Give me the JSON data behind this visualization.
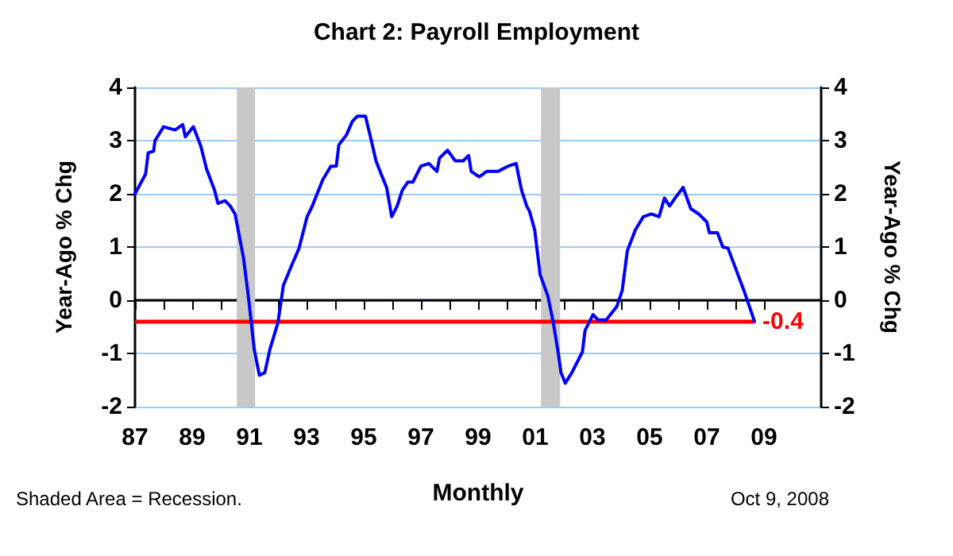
{
  "chart_data": {
    "type": "line",
    "title": "Chart 2: Payroll Employment",
    "xlabel": "Monthly",
    "ylabel": "Year-Ago % Chg",
    "y2label": "Year-Ago % Chg",
    "annotations": [
      "Shaded Area = Recession.",
      "Oct 9, 2008"
    ],
    "series": [
      {
        "color": "#0000ff",
        "x": [
          1987.0,
          1987.37,
          1987.46,
          1987.65,
          1987.7,
          1988.0,
          1988.4,
          1988.67,
          1988.76,
          1989.04,
          1989.3,
          1989.5,
          1989.78,
          1989.9,
          1990.15,
          1990.33,
          1990.5,
          1990.8,
          1990.98,
          1991.17,
          1991.35,
          1991.54,
          1991.72,
          1992.0,
          1992.19,
          1992.46,
          1992.74,
          1993.02,
          1993.2,
          1993.57,
          1993.85,
          1994.04,
          1994.13,
          1994.4,
          1994.6,
          1994.78,
          1995.06,
          1995.24,
          1995.43,
          1995.61,
          1995.8,
          1995.98,
          1996.17,
          1996.35,
          1996.54,
          1996.72,
          1997.0,
          1997.28,
          1997.56,
          1997.65,
          1997.93,
          1998.2,
          1998.48,
          1998.67,
          1998.76,
          1999.04,
          1999.3,
          1999.69,
          2000.05,
          2000.33,
          2000.52,
          2000.7,
          2000.8,
          2000.98,
          2001.17,
          2001.44,
          2001.63,
          2001.81,
          2001.9,
          2002.05,
          2002.28,
          2002.65,
          2002.74,
          2003.02,
          2003.2,
          2003.48,
          2003.85,
          2004.04,
          2004.22,
          2004.5,
          2004.78,
          2005.06,
          2005.33,
          2005.52,
          2005.7,
          2005.89,
          2006.17,
          2006.44,
          2006.72,
          2007.0,
          2007.09,
          2007.37,
          2007.56,
          2007.74,
          2008.02,
          2008.3,
          2008.67
        ],
        "values": [
          2.0,
          2.37,
          2.77,
          2.8,
          3.0,
          3.26,
          3.2,
          3.3,
          3.07,
          3.26,
          2.9,
          2.47,
          2.07,
          1.82,
          1.87,
          1.77,
          1.62,
          0.78,
          0.0,
          -0.92,
          -1.41,
          -1.36,
          -0.92,
          -0.42,
          0.28,
          0.63,
          0.98,
          1.57,
          1.77,
          2.27,
          2.52,
          2.52,
          2.92,
          3.11,
          3.36,
          3.46,
          3.46,
          3.06,
          2.62,
          2.37,
          2.12,
          1.57,
          1.77,
          2.07,
          2.22,
          2.22,
          2.52,
          2.57,
          2.42,
          2.67,
          2.82,
          2.62,
          2.62,
          2.72,
          2.42,
          2.32,
          2.42,
          2.42,
          2.52,
          2.57,
          2.07,
          1.77,
          1.67,
          1.32,
          0.48,
          0.08,
          -0.42,
          -1.01,
          -1.36,
          -1.56,
          -1.36,
          -0.97,
          -0.57,
          -0.27,
          -0.37,
          -0.37,
          -0.12,
          0.18,
          0.93,
          1.32,
          1.57,
          1.62,
          1.57,
          1.92,
          1.77,
          1.92,
          2.12,
          1.72,
          1.62,
          1.47,
          1.27,
          1.27,
          1.0,
          0.98,
          0.58,
          0.18,
          -0.4
        ]
      }
    ],
    "xlim": [
      1987,
      2011
    ],
    "xticks": [
      {
        "value": 1987,
        "label": "87"
      },
      {
        "value": 1988,
        "label": null
      },
      {
        "value": 1989,
        "label": "89"
      },
      {
        "value": 1990,
        "label": null
      },
      {
        "value": 1991,
        "label": "91"
      },
      {
        "value": 1992,
        "label": null
      },
      {
        "value": 1993,
        "label": "93"
      },
      {
        "value": 1994,
        "label": null
      },
      {
        "value": 1995,
        "label": "95"
      },
      {
        "value": 1996,
        "label": null
      },
      {
        "value": 1997,
        "label": "97"
      },
      {
        "value": 1998,
        "label": null
      },
      {
        "value": 1999,
        "label": "99"
      },
      {
        "value": 2000,
        "label": null
      },
      {
        "value": 2001,
        "label": "01"
      },
      {
        "value": 2002,
        "label": null
      },
      {
        "value": 2003,
        "label": "03"
      },
      {
        "value": 2004,
        "label": null
      },
      {
        "value": 2005,
        "label": "05"
      },
      {
        "value": 2006,
        "label": null
      },
      {
        "value": 2007,
        "label": "07"
      },
      {
        "value": 2008,
        "label": null
      },
      {
        "value": 2009,
        "label": "09"
      }
    ],
    "ylim": [
      -2,
      4
    ],
    "yticks": [
      -2,
      -1,
      0,
      1,
      2,
      3,
      4
    ],
    "y2lim": [
      -2,
      4
    ],
    "y2ticks": [
      -2,
      -1,
      0,
      1,
      2,
      3,
      4
    ],
    "ref_lines": [
      {
        "axis": "y",
        "value": -0.4,
        "label": "-0.4",
        "color": "#ff0000"
      }
    ],
    "bands": [
      {
        "axis": "x",
        "from": 1990.56,
        "to": 1991.2,
        "color": "#c8c8c8"
      },
      {
        "axis": "x",
        "from": 2001.2,
        "to": 2001.87,
        "color": "#c8c8c8"
      }
    ],
    "grid": "y",
    "line_style": "solid",
    "marker": "none"
  }
}
